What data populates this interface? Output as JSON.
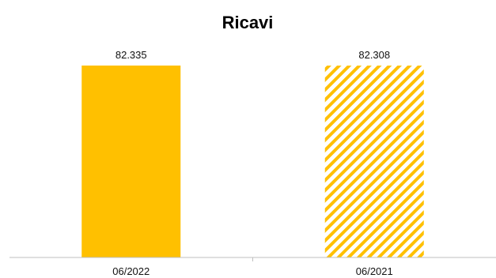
{
  "chart_data": {
    "type": "bar",
    "title": "Ricavi",
    "xlabel": "",
    "ylabel": "",
    "categories": [
      "06/2022",
      "06/2021"
    ],
    "values": [
      82335,
      82308
    ],
    "value_labels": [
      "82.335",
      "82.308"
    ],
    "ylim": [
      0,
      82335
    ],
    "grid": false,
    "legend": "none",
    "bar_styles": [
      "solid",
      "diagonal-hatch"
    ],
    "colors": {
      "bar": "#FFC000",
      "axis": "#BFBFBF"
    }
  }
}
